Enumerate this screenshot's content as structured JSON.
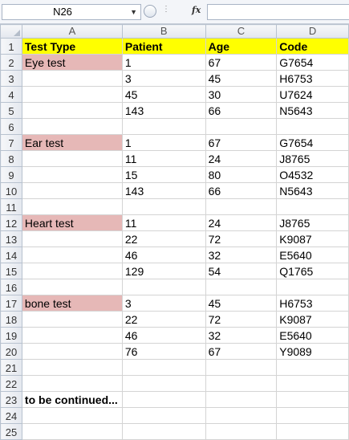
{
  "formula_bar": {
    "name_box": "N26",
    "fx_label": "fx",
    "formula": ""
  },
  "columns": [
    "A",
    "B",
    "C",
    "D"
  ],
  "rows": [
    {
      "num": "1",
      "cells": [
        "Test Type",
        "Patient",
        "Age",
        "Code"
      ],
      "style": "header"
    },
    {
      "num": "2",
      "cells": [
        "Eye test",
        "1",
        "67",
        "G7654"
      ],
      "style": "test"
    },
    {
      "num": "3",
      "cells": [
        "",
        "3",
        "45",
        "H6753"
      ]
    },
    {
      "num": "4",
      "cells": [
        "",
        "45",
        "30",
        "U7624"
      ]
    },
    {
      "num": "5",
      "cells": [
        "",
        "143",
        "66",
        "N5643"
      ]
    },
    {
      "num": "6",
      "cells": [
        "",
        "",
        "",
        ""
      ]
    },
    {
      "num": "7",
      "cells": [
        "Ear test",
        "1",
        "67",
        "G7654"
      ],
      "style": "test"
    },
    {
      "num": "8",
      "cells": [
        "",
        "11",
        "24",
        "J8765"
      ]
    },
    {
      "num": "9",
      "cells": [
        "",
        "15",
        "80",
        "O4532"
      ]
    },
    {
      "num": "10",
      "cells": [
        "",
        "143",
        "66",
        "N5643"
      ]
    },
    {
      "num": "11",
      "cells": [
        "",
        "",
        "",
        ""
      ]
    },
    {
      "num": "12",
      "cells": [
        "Heart test",
        "11",
        "24",
        "J8765"
      ],
      "style": "test"
    },
    {
      "num": "13",
      "cells": [
        "",
        "22",
        "72",
        "K9087"
      ]
    },
    {
      "num": "14",
      "cells": [
        "",
        "46",
        "32",
        "E5640"
      ]
    },
    {
      "num": "15",
      "cells": [
        "",
        "129",
        "54",
        "Q1765"
      ]
    },
    {
      "num": "16",
      "cells": [
        "",
        "",
        "",
        ""
      ]
    },
    {
      "num": "17",
      "cells": [
        "bone test",
        "3",
        "45",
        "H6753"
      ],
      "style": "test"
    },
    {
      "num": "18",
      "cells": [
        "",
        "22",
        "72",
        "K9087"
      ]
    },
    {
      "num": "19",
      "cells": [
        "",
        "46",
        "32",
        "E5640"
      ]
    },
    {
      "num": "20",
      "cells": [
        "",
        "76",
        "67",
        "Y9089"
      ]
    },
    {
      "num": "21",
      "cells": [
        "",
        "",
        "",
        ""
      ]
    },
    {
      "num": "22",
      "cells": [
        "",
        "",
        "",
        ""
      ]
    },
    {
      "num": "23",
      "cells": [
        "to be continued...",
        "",
        "",
        ""
      ],
      "style": "bold"
    },
    {
      "num": "24",
      "cells": [
        "",
        "",
        "",
        ""
      ]
    },
    {
      "num": "25",
      "cells": [
        "",
        "",
        "",
        ""
      ]
    }
  ],
  "colors": {
    "header_fill": "#ffff00",
    "test_fill": "#e6b8b7"
  }
}
